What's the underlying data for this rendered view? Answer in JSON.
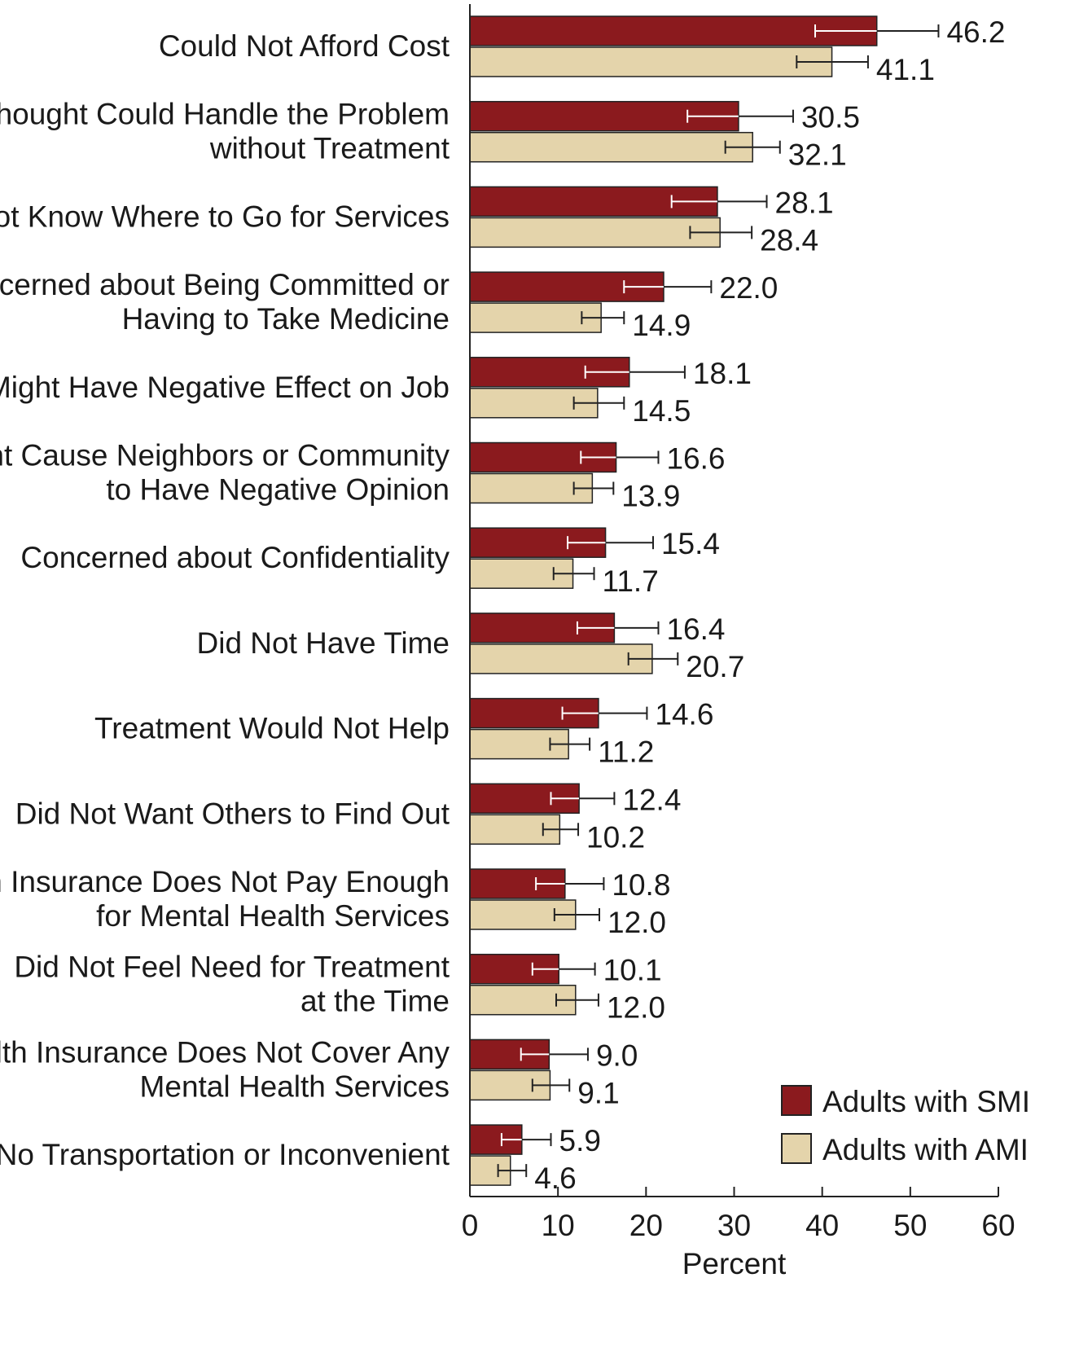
{
  "chart_data": {
    "type": "bar",
    "orientation": "horizontal",
    "title": "",
    "xlabel": "Percent",
    "ylabel": "",
    "xlim": [
      0,
      60
    ],
    "xticks": [
      0,
      10,
      20,
      30,
      40,
      50,
      60
    ],
    "grid": false,
    "legend_position": "bottom-right",
    "categories": [
      [
        "Could Not Afford Cost"
      ],
      [
        "Thought Could Handle the Problem",
        "without Treatment"
      ],
      [
        "Did Not Know Where to Go for Services"
      ],
      [
        "Concerned about Being Committed or",
        "Having to Take Medicine"
      ],
      [
        "Might Have Negative Effect on Job"
      ],
      [
        "Might Cause Neighbors or Community",
        "to Have Negative Opinion"
      ],
      [
        "Concerned about Confidentiality"
      ],
      [
        "Did Not Have Time"
      ],
      [
        "Treatment Would Not Help"
      ],
      [
        "Did Not Want Others to Find Out"
      ],
      [
        "Health Insurance Does Not Pay Enough",
        "for Mental Health Services"
      ],
      [
        "Did Not Feel Need for Treatment",
        "at the Time"
      ],
      [
        "Health Insurance Does Not Cover Any",
        "Mental Health Services"
      ],
      [
        "No Transportation or Inconvenient"
      ]
    ],
    "series": [
      {
        "name": "Adults with SMI",
        "color": "#8b1a1e",
        "values": [
          46.2,
          30.5,
          28.1,
          22.0,
          18.1,
          16.6,
          15.4,
          16.4,
          14.6,
          12.4,
          10.8,
          10.1,
          9.0,
          5.9
        ],
        "labels": [
          "46.2",
          "30.5",
          "28.1",
          "22.0",
          "18.1",
          "16.6",
          "15.4",
          "16.4",
          "14.6",
          "12.4",
          "10.8",
          "10.1",
          "9.0",
          "5.9"
        ],
        "error_low": [
          39.2,
          24.7,
          22.9,
          17.5,
          13.1,
          12.6,
          11.1,
          12.2,
          10.5,
          9.2,
          7.5,
          7.1,
          5.8,
          3.6
        ],
        "error_high": [
          53.2,
          36.7,
          33.7,
          27.4,
          24.4,
          21.4,
          20.8,
          21.4,
          20.1,
          16.4,
          15.2,
          14.2,
          13.4,
          9.2
        ]
      },
      {
        "name": "Adults with AMI",
        "color": "#e4d4ab",
        "values": [
          41.1,
          32.1,
          28.4,
          14.9,
          14.5,
          13.9,
          11.7,
          20.7,
          11.2,
          10.2,
          12.0,
          12.0,
          9.1,
          4.6
        ],
        "labels": [
          "41.1",
          "32.1",
          "28.4",
          "14.9",
          "14.5",
          "13.9",
          "11.7",
          "20.7",
          "11.2",
          "10.2",
          "12.0",
          "12.0",
          "9.1",
          "4.6"
        ],
        "error_low": [
          37.1,
          29.0,
          25.0,
          12.7,
          11.8,
          11.8,
          9.5,
          18.0,
          9.1,
          8.3,
          9.6,
          9.8,
          7.1,
          3.2
        ],
        "error_high": [
          45.2,
          35.2,
          32.0,
          17.5,
          17.5,
          16.3,
          14.1,
          23.6,
          13.6,
          12.3,
          14.7,
          14.6,
          11.3,
          6.4
        ]
      }
    ]
  }
}
